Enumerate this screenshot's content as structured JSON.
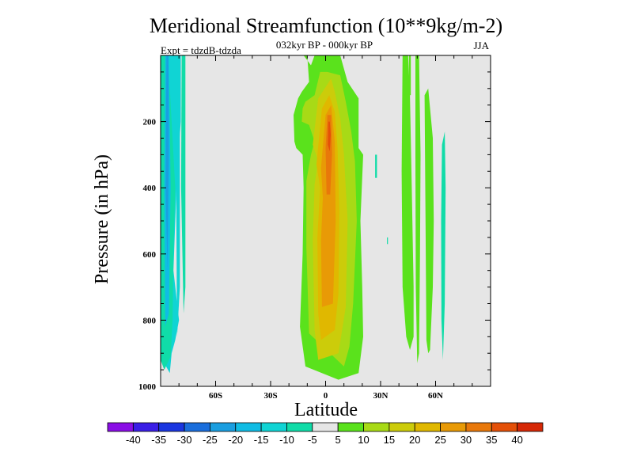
{
  "chart_data": {
    "type": "contour",
    "title": "Meridional Streamfunction (10**9kg/m-2)",
    "subtitle": "032kyr BP - 000kyr BP",
    "left_label": "Expt = tdzdB-tdzda",
    "right_label": "JJA",
    "xlabel": "Latitude",
    "ylabel": "Pressure (in hPa)",
    "xlim": [
      -90,
      90
    ],
    "ylim": [
      0,
      1000
    ],
    "y_inverted": true,
    "x_ticks": [
      {
        "value": -60,
        "label": "60S"
      },
      {
        "value": -30,
        "label": "30S"
      },
      {
        "value": 0,
        "label": "0"
      },
      {
        "value": 30,
        "label": "30N"
      },
      {
        "value": 60,
        "label": "60N"
      }
    ],
    "y_ticks": [
      {
        "value": 200,
        "label": "200"
      },
      {
        "value": 400,
        "label": "400"
      },
      {
        "value": 600,
        "label": "600"
      },
      {
        "value": 800,
        "label": "800"
      },
      {
        "value": 1000,
        "label": "1000"
      }
    ],
    "missing_color": "#e6e6e6",
    "levels": [
      {
        "label": "-40",
        "color": "#8a0ee6"
      },
      {
        "label": "-35",
        "color": "#3a1ee6"
      },
      {
        "label": "-30",
        "color": "#1a36e0"
      },
      {
        "label": "-25",
        "color": "#1a6edc"
      },
      {
        "label": "-20",
        "color": "#1a9ee0"
      },
      {
        "label": "-15",
        "color": "#10bce4"
      },
      {
        "label": "-10",
        "color": "#10d4d4"
      },
      {
        "label": "-5",
        "color": "#10dca8"
      },
      {
        "label": "5",
        "color": "#e6e6e6"
      },
      {
        "label": "10",
        "color": "#5ae21c"
      },
      {
        "label": "15",
        "color": "#a8da16"
      },
      {
        "label": "20",
        "color": "#cccc0a"
      },
      {
        "label": "25",
        "color": "#e0b800"
      },
      {
        "label": "30",
        "color": "#e89a06"
      },
      {
        "label": "35",
        "color": "#e8780a"
      },
      {
        "label": "40",
        "color": "#e45008"
      },
      {
        "label": "",
        "color": "#d62806"
      }
    ],
    "regions": [
      {
        "name": "southern-negative-cell",
        "level": -10,
        "lat": [
          -88,
          -79,
          -79,
          -81,
          -83,
          -80,
          -82,
          -84,
          -85,
          -88
        ],
        "p": [
          0,
          0,
          200,
          350,
          650,
          800,
          860,
          900,
          960,
          930
        ]
      },
      {
        "name": "southern-negative-cell-outer",
        "level": -5,
        "lat": [
          -90,
          -86,
          -84,
          -82,
          -83,
          -83.5,
          -84.5,
          -88,
          -90
        ],
        "p": [
          0,
          0,
          200,
          400,
          600,
          800,
          910,
          950,
          920
        ]
      },
      {
        "name": "southern-negative-core-1",
        "level": -15,
        "lat": [
          -87.5,
          -85.5,
          -84.5,
          -85.5,
          -87.5,
          -88
        ],
        "p": [
          0,
          0,
          400,
          780,
          820,
          400
        ]
      },
      {
        "name": "southern-negative-core-2",
        "level": -20,
        "lat": [
          -86.8,
          -85.8,
          -85.5,
          -86.3,
          -87.3
        ],
        "p": [
          0,
          0,
          300,
          650,
          400
        ]
      },
      {
        "name": "southern-negative-strip",
        "level": -10,
        "lat": [
          -81,
          -79.5,
          -79.5,
          -81,
          -81.5
        ],
        "p": [
          0,
          0,
          700,
          850,
          400
        ]
      },
      {
        "name": "southern-negative-strip-2",
        "level": -5,
        "lat": [
          -78.5,
          -76.5,
          -76.5,
          -77.5,
          -78.8
        ],
        "p": [
          0,
          0,
          700,
          780,
          400
        ]
      },
      {
        "name": "equatorial-positive-cell-outer",
        "level": 10,
        "lat": [
          -12,
          -10,
          -9,
          -13,
          -15,
          -17.5,
          -17,
          -16,
          -12.5,
          -12,
          -12.5,
          -14,
          -11,
          7,
          18,
          20.5,
          20,
          19,
          20.5,
          18,
          18,
          12,
          8,
          2,
          -6,
          -8,
          -12
        ],
        "p": [
          0,
          0,
          80,
          110,
          130,
          180,
          260,
          280,
          300,
          400,
          600,
          820,
          940,
          980,
          960,
          850,
          700,
          500,
          300,
          280,
          130,
          80,
          0,
          0,
          0,
          30,
          0
        ]
      },
      {
        "name": "equatorial-positive-cell-15",
        "level": 15,
        "lat": [
          -11,
          -12.5,
          -13,
          -9,
          -6,
          -8,
          -10.5,
          -10.5,
          -9,
          10,
          13,
          15,
          17,
          16,
          14,
          11,
          8,
          1,
          -3,
          -6,
          -11
        ],
        "p": [
          140,
          160,
          200,
          210,
          260,
          300,
          380,
          580,
          840,
          940,
          880,
          750,
          500,
          320,
          230,
          140,
          60,
          50,
          50,
          120,
          140
        ]
      },
      {
        "name": "equatorial-positive-cell-20",
        "level": 20,
        "lat": [
          -4,
          -7,
          -4,
          -6,
          -7,
          -6,
          -4,
          7,
          11,
          12,
          10,
          8,
          5,
          3,
          -4
        ],
        "p": [
          130,
          270,
          320,
          390,
          560,
          830,
          920,
          900,
          760,
          500,
          300,
          190,
          110,
          70,
          130
        ]
      },
      {
        "name": "equatorial-positive-cell-25",
        "level": 25,
        "lat": [
          -2,
          -5,
          -3,
          -4.5,
          -4,
          -2.5,
          5,
          7,
          7.5,
          6.5,
          5,
          2,
          -2
        ],
        "p": [
          160,
          330,
          400,
          550,
          780,
          860,
          830,
          720,
          470,
          280,
          170,
          120,
          160
        ]
      },
      {
        "name": "equatorial-positive-cell-30",
        "level": 30,
        "lat": [
          0,
          -2.5,
          -1.5,
          -2.5,
          -2,
          4,
          5.5,
          5,
          3,
          0
        ],
        "p": [
          180,
          340,
          430,
          560,
          760,
          750,
          500,
          260,
          150,
          180
        ]
      },
      {
        "name": "equatorial-positive-cell-35",
        "level": 35,
        "lat": [
          1,
          0,
          0.5,
          2.5,
          3.5,
          3,
          1
        ],
        "p": [
          180,
          280,
          420,
          420,
          300,
          180,
          180
        ]
      },
      {
        "name": "equatorial-positive-cell-40",
        "level": 40,
        "lat": [
          1.5,
          1.2,
          2.3,
          2.8,
          2.3,
          1.5
        ],
        "p": [
          200,
          270,
          290,
          240,
          200,
          200
        ]
      },
      {
        "name": "northern-positive-band-1",
        "level": 10,
        "lat": [
          42,
          45,
          46,
          47,
          48,
          48,
          46,
          44,
          42,
          41.5,
          42
        ],
        "p": [
          0,
          0,
          120,
          400,
          700,
          850,
          890,
          850,
          700,
          350,
          0
        ]
      },
      {
        "name": "northern-positive-band-2",
        "level": 10,
        "lat": [
          49,
          51,
          51.8,
          51.5,
          51,
          50,
          49.2,
          49
        ],
        "p": [
          0,
          0,
          300,
          600,
          900,
          930,
          700,
          300
        ]
      },
      {
        "name": "northern-positive-band-3",
        "level": 10,
        "lat": [
          54,
          56,
          58.5,
          59,
          58.5,
          57,
          56,
          55,
          54.5,
          54
        ],
        "p": [
          120,
          100,
          250,
          500,
          700,
          890,
          900,
          860,
          500,
          120
        ]
      },
      {
        "name": "northern-negative-band",
        "level": -5,
        "lat": [
          63.5,
          65,
          65.5,
          65,
          64,
          63.2,
          63
        ],
        "p": [
          270,
          230,
          400,
          750,
          920,
          800,
          500
        ]
      },
      {
        "name": "northern-positive-blob",
        "level": 10,
        "lat": [
          45.5,
          46.5,
          46.5,
          45.5
        ],
        "p": [
          0,
          0,
          120,
          120
        ]
      },
      {
        "name": "small-negative-blob",
        "level": -5,
        "lat": [
          27,
          28,
          28,
          27
        ],
        "p": [
          300,
          300,
          370,
          370
        ]
      },
      {
        "name": "small-negative-dot",
        "level": -5,
        "lat": [
          33.5,
          34,
          34,
          33.5
        ],
        "p": [
          550,
          550,
          570,
          570
        ]
      }
    ]
  }
}
